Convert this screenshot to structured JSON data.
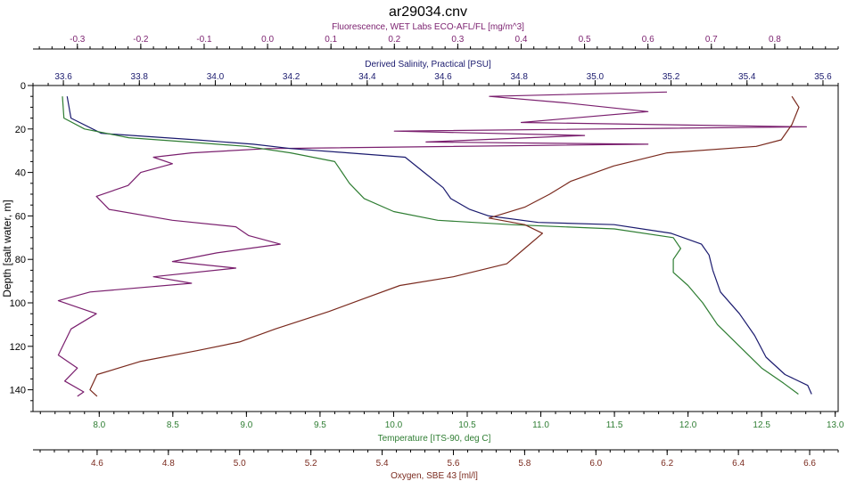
{
  "chart_data": {
    "type": "line",
    "title": "ar29034.cnv",
    "y_axis": {
      "label": "Depth [salt water, m]",
      "range": [
        0,
        150
      ],
      "inverted": true,
      "ticks": [
        0,
        20,
        40,
        60,
        80,
        100,
        120,
        140
      ]
    },
    "x_axes": {
      "fluorescence": {
        "label": "Fluorescence, WET Labs ECO-AFL/FL [mg/m^3]",
        "position": "top-outer",
        "color": "#7a1f6e",
        "range": [
          -0.37,
          0.9
        ],
        "ticks": [
          -0.3,
          -0.2,
          -0.1,
          0.0,
          0.1,
          0.2,
          0.3,
          0.4,
          0.5,
          0.6,
          0.7,
          0.8
        ],
        "tick_labels": [
          "-0.3",
          "-0.2",
          "-0.1",
          "0.0",
          "0.1",
          "0.2",
          "0.3",
          "0.4",
          "0.5",
          "0.6",
          "0.7",
          "0.8"
        ]
      },
      "salinity": {
        "label": "Derived Salinity, Practical [PSU]",
        "position": "top-inner",
        "color": "#1a1a6e",
        "range": [
          33.52,
          35.64
        ],
        "ticks": [
          33.6,
          33.8,
          34.0,
          34.2,
          34.4,
          34.6,
          34.8,
          35.0,
          35.2,
          35.4,
          35.6
        ],
        "tick_labels": [
          "33.6",
          "33.8",
          "34.0",
          "34.2",
          "34.4",
          "34.6",
          "34.8",
          "35.0",
          "35.2",
          "35.4",
          "35.6"
        ]
      },
      "temperature": {
        "label": "Temperature [ITS-90, deg C]",
        "position": "bottom-inner",
        "color": "#2e7d32",
        "range": [
          7.55,
          13.02
        ],
        "ticks": [
          8.0,
          8.5,
          9.0,
          9.5,
          10.0,
          10.5,
          11.0,
          11.5,
          12.0,
          12.5,
          13.0
        ],
        "tick_labels": [
          "8.0",
          "8.5",
          "9.0",
          "9.5",
          "10.0",
          "10.5",
          "11.0",
          "11.5",
          "12.0",
          "12.5",
          "13.0"
        ]
      },
      "oxygen": {
        "label": "Oxygen, SBE 43 [ml/l]",
        "position": "bottom-outer",
        "color": "#7a2a1e",
        "range": [
          4.42,
          6.68
        ],
        "ticks": [
          4.6,
          4.8,
          5.0,
          5.2,
          5.4,
          5.6,
          5.8,
          6.0,
          6.2,
          6.4,
          6.6
        ],
        "tick_labels": [
          "4.6",
          "4.8",
          "5.0",
          "5.2",
          "5.4",
          "5.6",
          "5.8",
          "6.0",
          "6.2",
          "6.4",
          "6.6"
        ]
      }
    },
    "grid": false,
    "series": [
      {
        "key": "fluorescence",
        "color": "#7a1f6e",
        "points": [
          [
            0.63,
            3
          ],
          [
            0.35,
            5
          ],
          [
            0.47,
            8
          ],
          [
            0.6,
            12
          ],
          [
            0.4,
            17
          ],
          [
            0.85,
            19
          ],
          [
            0.2,
            21
          ],
          [
            0.5,
            23
          ],
          [
            0.25,
            26
          ],
          [
            0.6,
            27
          ],
          [
            0.0,
            29
          ],
          [
            -0.12,
            31
          ],
          [
            -0.18,
            33
          ],
          [
            -0.15,
            36
          ],
          [
            -0.2,
            40
          ],
          [
            -0.22,
            46
          ],
          [
            -0.27,
            51
          ],
          [
            -0.25,
            57
          ],
          [
            -0.15,
            62
          ],
          [
            -0.05,
            65
          ],
          [
            -0.03,
            69
          ],
          [
            0.02,
            73
          ],
          [
            -0.08,
            77
          ],
          [
            -0.15,
            81
          ],
          [
            -0.05,
            84
          ],
          [
            -0.18,
            88
          ],
          [
            -0.12,
            91
          ],
          [
            -0.28,
            95
          ],
          [
            -0.33,
            99
          ],
          [
            -0.27,
            105
          ],
          [
            -0.31,
            112
          ],
          [
            -0.32,
            118
          ],
          [
            -0.33,
            124
          ],
          [
            -0.3,
            130
          ],
          [
            -0.32,
            136
          ],
          [
            -0.29,
            141
          ],
          [
            -0.3,
            143
          ]
        ]
      },
      {
        "key": "salinity",
        "color": "#1a1a6e",
        "points": [
          [
            33.61,
            5
          ],
          [
            33.62,
            15
          ],
          [
            33.7,
            22
          ],
          [
            33.95,
            25
          ],
          [
            34.1,
            27
          ],
          [
            34.2,
            29
          ],
          [
            34.35,
            31
          ],
          [
            34.5,
            33
          ],
          [
            34.55,
            40
          ],
          [
            34.6,
            47
          ],
          [
            34.62,
            52
          ],
          [
            34.67,
            57
          ],
          [
            34.72,
            60
          ],
          [
            34.85,
            63
          ],
          [
            35.05,
            64
          ],
          [
            35.2,
            68
          ],
          [
            35.28,
            73
          ],
          [
            35.3,
            78
          ],
          [
            35.31,
            85
          ],
          [
            35.33,
            95
          ],
          [
            35.38,
            105
          ],
          [
            35.42,
            115
          ],
          [
            35.45,
            125
          ],
          [
            35.5,
            133
          ],
          [
            35.56,
            138
          ],
          [
            35.57,
            142
          ]
        ]
      },
      {
        "key": "temperature",
        "color": "#2e7d32",
        "points": [
          [
            7.75,
            5
          ],
          [
            7.76,
            15
          ],
          [
            7.9,
            20
          ],
          [
            8.2,
            24
          ],
          [
            8.6,
            26
          ],
          [
            9.0,
            28
          ],
          [
            9.3,
            31
          ],
          [
            9.6,
            35
          ],
          [
            9.65,
            40
          ],
          [
            9.7,
            45
          ],
          [
            9.8,
            52
          ],
          [
            10.0,
            58
          ],
          [
            10.3,
            62
          ],
          [
            10.8,
            64
          ],
          [
            11.5,
            66
          ],
          [
            11.9,
            70
          ],
          [
            11.95,
            75
          ],
          [
            11.9,
            80
          ],
          [
            11.9,
            86
          ],
          [
            12.0,
            92
          ],
          [
            12.1,
            100
          ],
          [
            12.2,
            110
          ],
          [
            12.35,
            120
          ],
          [
            12.5,
            130
          ],
          [
            12.65,
            137
          ],
          [
            12.75,
            142
          ]
        ]
      },
      {
        "key": "oxygen",
        "color": "#7a2a1e",
        "points": [
          [
            6.55,
            5
          ],
          [
            6.57,
            10
          ],
          [
            6.55,
            18
          ],
          [
            6.52,
            25
          ],
          [
            6.45,
            28
          ],
          [
            6.2,
            31
          ],
          [
            6.05,
            37
          ],
          [
            5.93,
            44
          ],
          [
            5.87,
            50
          ],
          [
            5.8,
            56
          ],
          [
            5.7,
            61
          ],
          [
            5.8,
            64
          ],
          [
            5.85,
            68
          ],
          [
            5.8,
            75
          ],
          [
            5.75,
            82
          ],
          [
            5.6,
            88
          ],
          [
            5.45,
            92
          ],
          [
            5.35,
            98
          ],
          [
            5.25,
            104
          ],
          [
            5.1,
            112
          ],
          [
            5.0,
            118
          ],
          [
            4.88,
            122
          ],
          [
            4.72,
            127
          ],
          [
            4.6,
            133
          ],
          [
            4.58,
            140
          ],
          [
            4.6,
            143
          ]
        ]
      }
    ]
  }
}
